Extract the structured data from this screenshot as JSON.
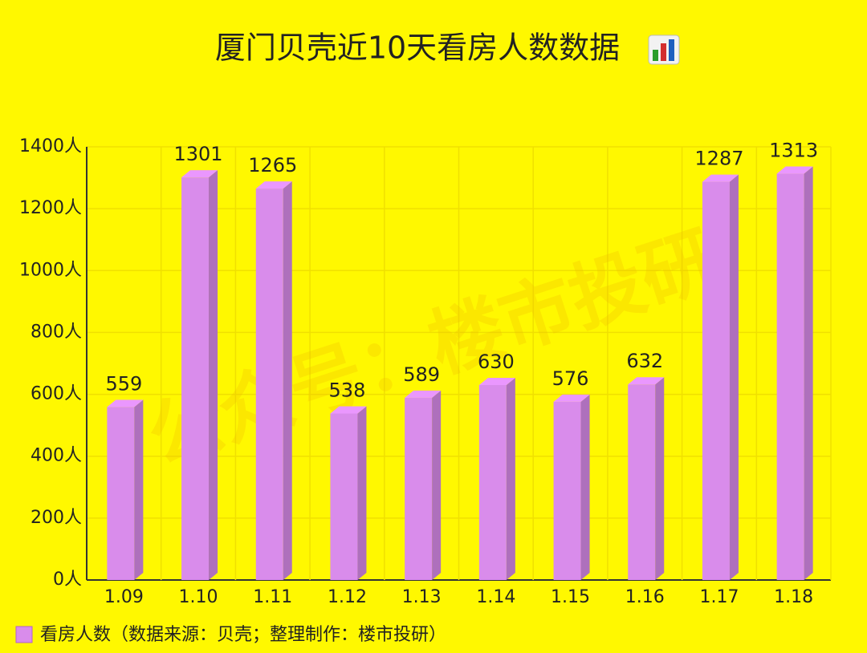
{
  "chart_data": {
    "type": "bar3d",
    "title": "厦门贝壳近10天看房人数数据",
    "watermark": "公众号：楼市投研",
    "categories": [
      "1.09",
      "1.10",
      "1.11",
      "1.12",
      "1.13",
      "1.14",
      "1.15",
      "1.16",
      "1.17",
      "1.18"
    ],
    "series": [
      {
        "name": "看房人数",
        "color": "#d98ceb",
        "values": [
          559,
          1301,
          1265,
          538,
          589,
          630,
          576,
          632,
          1287,
          1313
        ]
      }
    ],
    "source_note": "（数据来源：贝壳；整理制作：楼市投研）",
    "ylim": [
      0,
      1400
    ],
    "yticks": [
      {
        "value": 0,
        "label": "0人"
      },
      {
        "value": 200,
        "label": "200人"
      },
      {
        "value": 400,
        "label": "400人"
      },
      {
        "value": 600,
        "label": "600人"
      },
      {
        "value": 800,
        "label": "800人"
      },
      {
        "value": 1000,
        "label": "1000人"
      },
      {
        "value": 1200,
        "label": "1200人"
      },
      {
        "value": 1400,
        "label": "1400人"
      }
    ],
    "grid": true
  }
}
